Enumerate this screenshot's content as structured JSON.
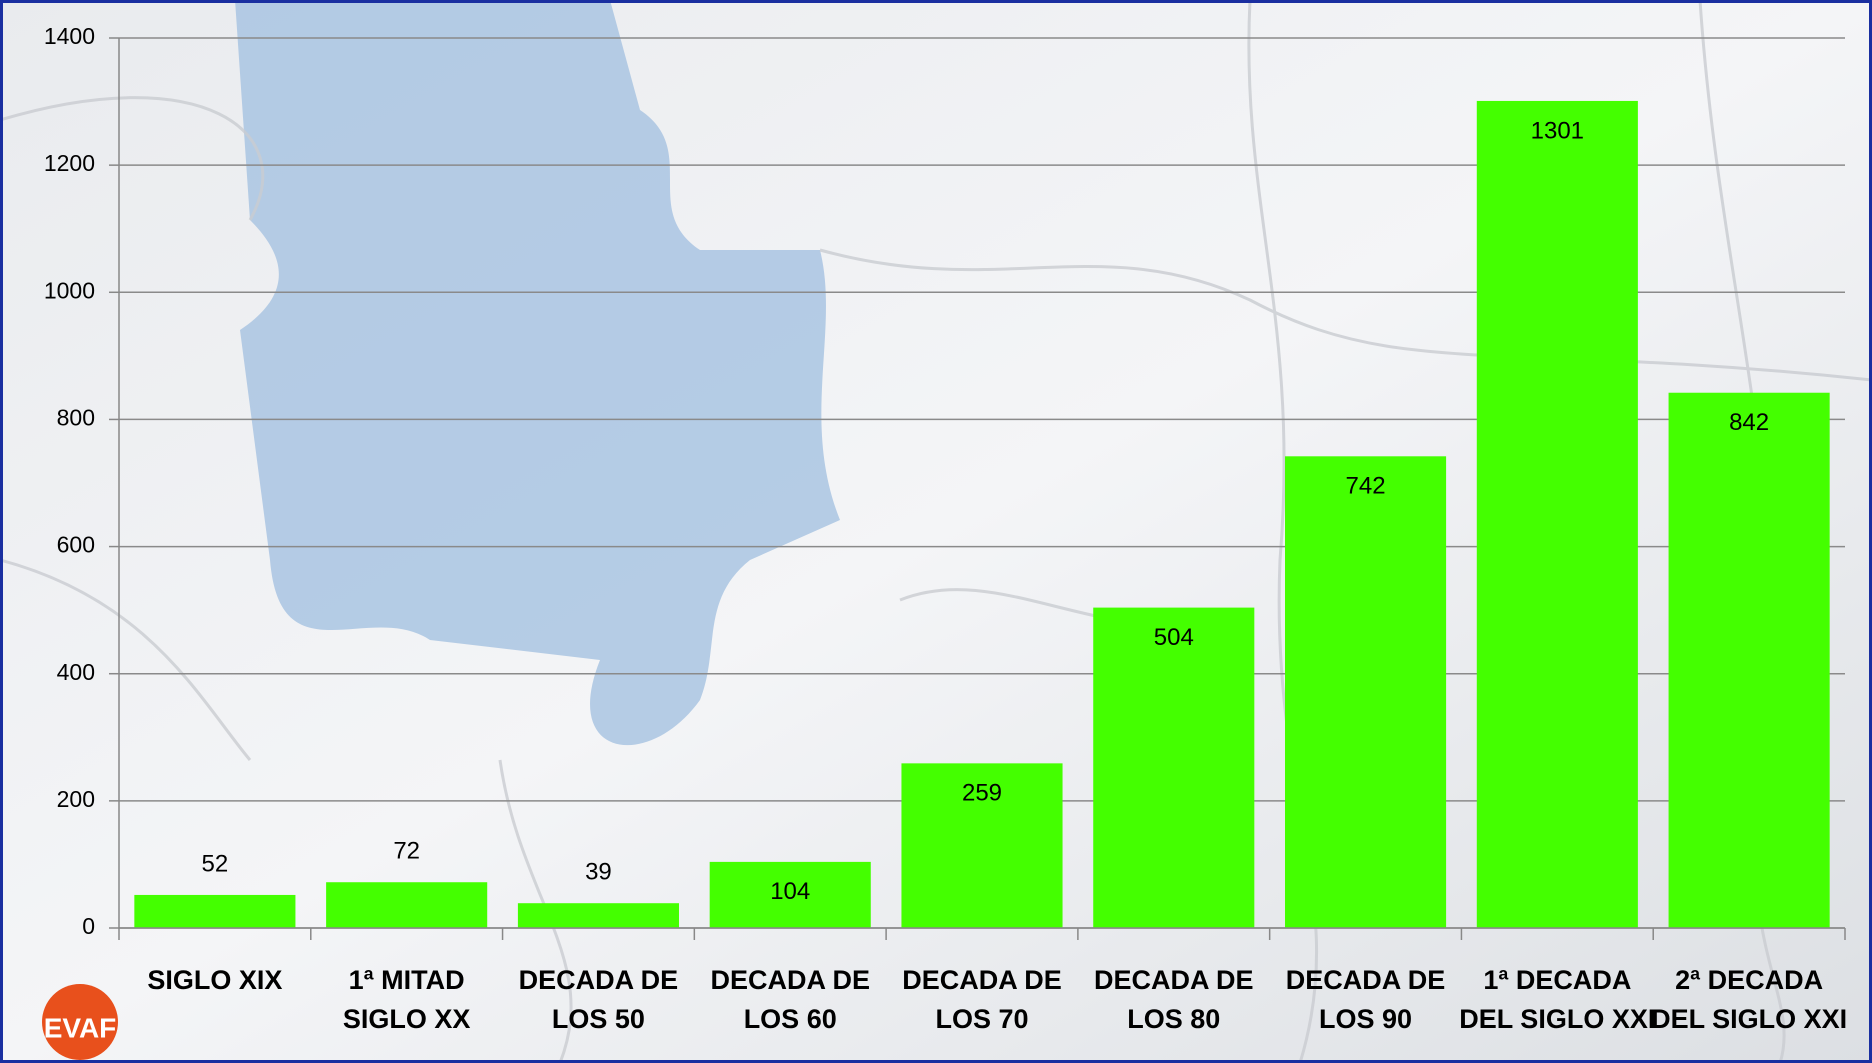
{
  "chart_data": {
    "type": "bar",
    "categories": [
      "SIGLO XIX",
      "1ª MITAD SIGLO XX",
      "DECADA DE LOS 50",
      "DECADA DE LOS 60",
      "DECADA DE LOS 70",
      "DECADA DE LOS 80",
      "DECADA DE LOS 90",
      "1ª DECADA DEL SIGLO XXI",
      "2ª DECADA DEL SIGLO XXI"
    ],
    "values": [
      52,
      72,
      39,
      104,
      259,
      504,
      742,
      1301,
      842
    ],
    "color": "#44ff00",
    "ylim": [
      0,
      1400
    ],
    "yticks": [
      0,
      200,
      400,
      600,
      800,
      1000,
      1200,
      1400
    ],
    "grid": true
  },
  "logo": "EVAF"
}
